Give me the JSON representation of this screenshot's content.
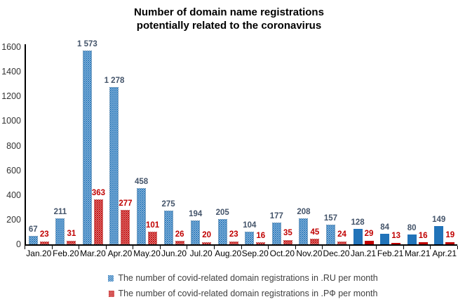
{
  "title": {
    "line1": "Number of domain name registrations",
    "line2": "potentially related to the coronavirus"
  },
  "colors": {
    "ru_blue": "#2173B9",
    "rf_red": "#C00000",
    "ru_label": "#44546A",
    "rf_label": "#C00000",
    "axis_text": "#333333",
    "legend_text": "#404040"
  },
  "chart_data": {
    "type": "bar",
    "categories": [
      "Jan.20",
      "Feb.20",
      "Mar.20",
      "Apr.20",
      "May.20",
      "Jun.20",
      "Jul.20",
      "Aug.20",
      "Sep.20",
      "Oct.20",
      "Nov.20",
      "Dec.20",
      "Jan.21",
      "Feb.21",
      "Mar.21",
      "Apr.21"
    ],
    "series": [
      {
        "name": "The number of covid-related domain registrations in .RU per month",
        "values": [
          67,
          211,
          1573,
          1278,
          458,
          275,
          194,
          205,
          104,
          177,
          208,
          157,
          128,
          84,
          80,
          149
        ],
        "labels": [
          "67",
          "211",
          "1 573",
          "1 278",
          "458",
          "275",
          "194",
          "205",
          "104",
          "177",
          "208",
          "157",
          "128",
          "84",
          "80",
          "149"
        ]
      },
      {
        "name": "The number of covid-related domain registrations in .РФ per month",
        "values": [
          23,
          31,
          363,
          277,
          101,
          26,
          20,
          23,
          16,
          35,
          45,
          24,
          29,
          13,
          16,
          19
        ],
        "labels": [
          "23",
          "31",
          "363",
          "277",
          "101",
          "26",
          "20",
          "23",
          "16",
          "35",
          "45",
          "24",
          "29",
          "13",
          "16",
          "19"
        ]
      }
    ],
    "style_note": "2020 months use dotted-pattern fill, 2021 months (index 12-15) use solid fill",
    "solid_from_index": 12,
    "ylim": [
      0,
      1600
    ],
    "yticks": [
      "0",
      "200",
      "400",
      "600",
      "800",
      "1000",
      "1200",
      "1400",
      "1600"
    ],
    "grid": false,
    "legend_position": "bottom"
  }
}
